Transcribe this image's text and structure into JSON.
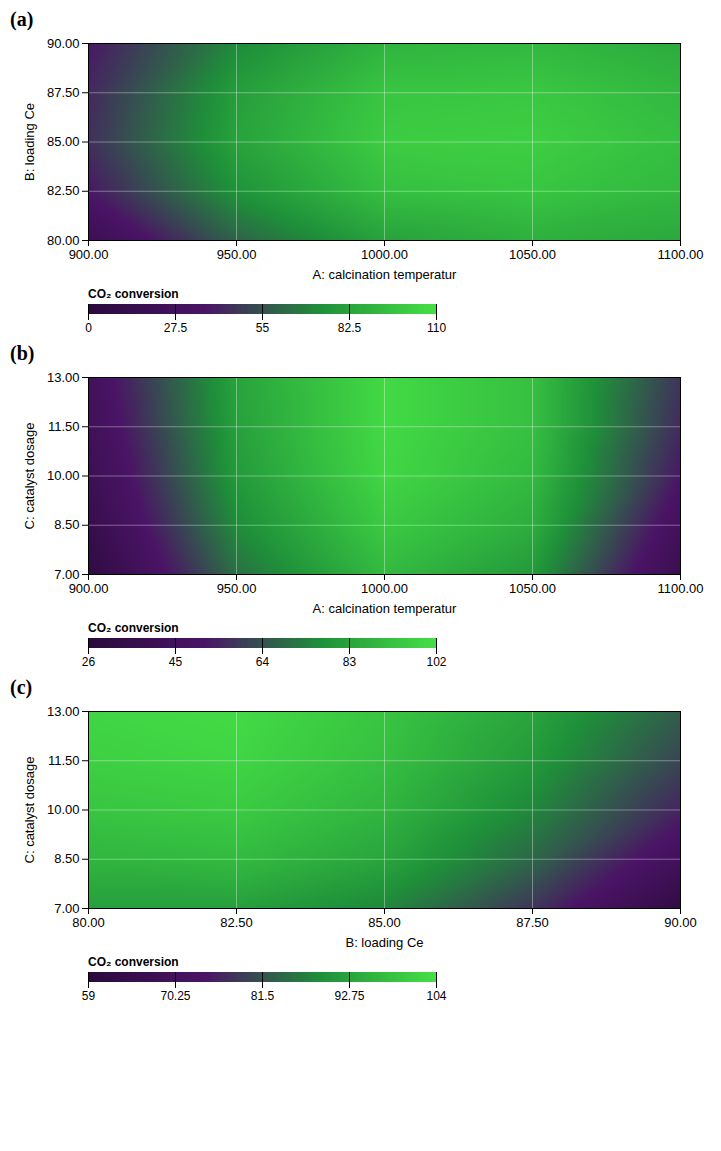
{
  "chart_data": [
    {
      "type": "heatmap",
      "title": "(a)",
      "x_label": "A: calcination temperatur",
      "y_label": "B: loading Ce",
      "z_label": "CO₂ conversion",
      "x": [
        900,
        950,
        1000,
        1050,
        1100
      ],
      "y": [
        80,
        82.5,
        85,
        87.5,
        90
      ],
      "values": [
        [
          20,
          60,
          82,
          88,
          85
        ],
        [
          38,
          75,
          95,
          98,
          92
        ],
        [
          45,
          82,
          101,
          102,
          95
        ],
        [
          43,
          80,
          98,
          99,
          92
        ],
        [
          38,
          72,
          90,
          92,
          86
        ]
      ],
      "xlim": [
        900,
        1100
      ],
      "xticks": [
        {
          "value": 900,
          "label": "900.00"
        },
        {
          "value": 950,
          "label": "950.00"
        },
        {
          "value": 1000,
          "label": "1000.00"
        },
        {
          "value": 1050,
          "label": "1050.00"
        },
        {
          "value": 1100,
          "label": "1100.00"
        }
      ],
      "ylim": [
        80,
        90
      ],
      "yticks": [
        {
          "value": 80,
          "label": "80.00"
        },
        {
          "value": 82.5,
          "label": "82.50"
        },
        {
          "value": 85,
          "label": "85.00"
        },
        {
          "value": 87.5,
          "label": "87.50"
        },
        {
          "value": 90,
          "label": "90.00"
        }
      ],
      "zlim": [
        0,
        110
      ],
      "zticks": [
        0,
        27.5,
        55,
        82.5,
        110
      ],
      "grid": true
    },
    {
      "type": "heatmap",
      "title": "(b)",
      "x_label": "A: calcination temperatur",
      "y_label": "C: catalyst dosage",
      "z_label": "CO₂ conversion",
      "x": [
        900,
        950,
        1000,
        1050,
        1100
      ],
      "y": [
        7,
        8.5,
        10,
        11.5,
        13
      ],
      "values": [
        [
          30,
          70,
          90,
          80,
          38
        ],
        [
          36,
          76,
          95,
          86,
          45
        ],
        [
          40,
          80,
          99,
          90,
          52
        ],
        [
          43,
          82,
          100,
          92,
          56
        ],
        [
          45,
          83,
          100,
          92,
          58
        ]
      ],
      "xlim": [
        900,
        1100
      ],
      "xticks": [
        {
          "value": 900,
          "label": "900.00"
        },
        {
          "value": 950,
          "label": "950.00"
        },
        {
          "value": 1000,
          "label": "1000.00"
        },
        {
          "value": 1050,
          "label": "1050.00"
        },
        {
          "value": 1100,
          "label": "1100.00"
        }
      ],
      "ylim": [
        7,
        13
      ],
      "yticks": [
        {
          "value": 7,
          "label": "7.00"
        },
        {
          "value": 8.5,
          "label": "8.50"
        },
        {
          "value": 10,
          "label": "10.00"
        },
        {
          "value": 11.5,
          "label": "11.50"
        },
        {
          "value": 13,
          "label": "13.00"
        }
      ],
      "zlim": [
        26,
        102
      ],
      "zticks": [
        26,
        45,
        64,
        83,
        102
      ],
      "grid": true
    },
    {
      "type": "heatmap",
      "title": "(c)",
      "x_label": "B: loading Ce",
      "y_label": "C: catalyst dosage",
      "z_label": "CO₂ conversion",
      "x": [
        80,
        82.5,
        85,
        87.5,
        90
      ],
      "y": [
        7,
        8.5,
        10,
        11.5,
        13
      ],
      "values": [
        [
          92,
          92,
          88,
          78,
          62
        ],
        [
          96,
          97,
          93,
          84,
          70
        ],
        [
          99,
          100,
          96,
          88,
          76
        ],
        [
          101,
          102,
          98,
          91,
          80
        ],
        [
          102,
          103,
          99,
          93,
          83
        ]
      ],
      "xlim": [
        80,
        90
      ],
      "xticks": [
        {
          "value": 80,
          "label": "80.00"
        },
        {
          "value": 82.5,
          "label": "82.50"
        },
        {
          "value": 85,
          "label": "85.00"
        },
        {
          "value": 87.5,
          "label": "87.50"
        },
        {
          "value": 90,
          "label": "90.00"
        }
      ],
      "ylim": [
        7,
        13
      ],
      "yticks": [
        {
          "value": 7,
          "label": "7.00"
        },
        {
          "value": 8.5,
          "label": "8.50"
        },
        {
          "value": 10,
          "label": "10.00"
        },
        {
          "value": 11.5,
          "label": "11.50"
        },
        {
          "value": 13,
          "label": "13.00"
        }
      ],
      "zlim": [
        59,
        104
      ],
      "zticks": [
        59,
        70.25,
        81.5,
        92.75,
        104
      ],
      "grid": true
    }
  ]
}
